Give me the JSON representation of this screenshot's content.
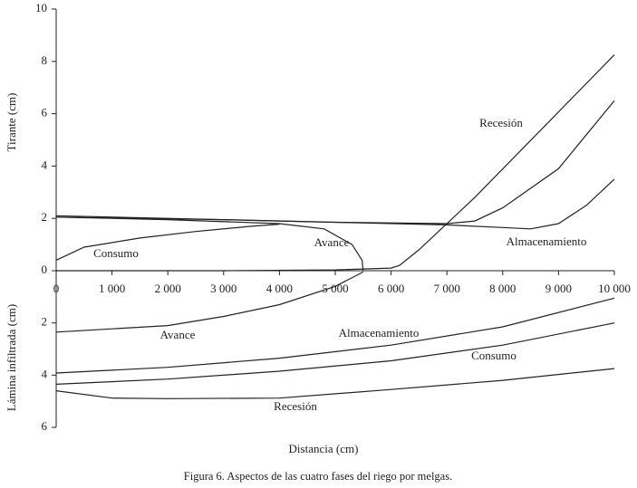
{
  "chart_data": [
    {
      "type": "line",
      "ylabel": "Tirante (cm)",
      "xlim": [
        0,
        10000
      ],
      "ylim": [
        0,
        10
      ],
      "xticks": [
        0,
        {
          "value": 1000,
          "label": "1 000"
        },
        {
          "value": 2000,
          "label": "2 000"
        },
        {
          "value": 3000,
          "label": "3 000"
        },
        {
          "value": 4000,
          "label": "4 000"
        },
        {
          "value": 5000,
          "label": "5 000"
        },
        {
          "value": 6000,
          "label": "6 000"
        },
        {
          "value": 7000,
          "label": "7 000"
        },
        {
          "value": 8000,
          "label": "8 000"
        },
        {
          "value": 9000,
          "label": "9 000"
        },
        {
          "value": 10000,
          "label": "10 000"
        }
      ],
      "yticks": [
        0,
        2,
        4,
        6,
        8,
        10
      ],
      "color": "#222222",
      "series": [
        {
          "name": "Consumo",
          "x": [
            0,
            500,
            1500,
            2500,
            3500,
            4000
          ],
          "values": [
            0.4,
            0.9,
            1.25,
            1.5,
            1.7,
            1.78
          ]
        },
        {
          "name": "Avance",
          "x": [
            0,
            2000,
            4000,
            4800,
            5300,
            5480,
            5500
          ],
          "values": [
            2.05,
            1.95,
            1.8,
            1.6,
            1.0,
            0.4,
            0
          ]
        },
        {
          "name": "Recesión",
          "x": [
            0,
            3000,
            5000,
            6000,
            6150,
            6500,
            7500,
            10000
          ],
          "values": [
            0,
            0,
            0.03,
            0.1,
            0.2,
            0.8,
            2.8,
            8.25
          ]
        },
        {
          "x": [
            0,
            3000,
            5000,
            7000,
            7500,
            8000,
            9000,
            10000
          ],
          "values": [
            2.05,
            1.95,
            1.85,
            1.8,
            1.9,
            2.4,
            3.9,
            6.5
          ]
        },
        {
          "name": "Almacenamiento",
          "x": [
            0,
            4000,
            7000,
            8000,
            8500,
            9000,
            9500,
            10000
          ],
          "values": [
            2.1,
            1.9,
            1.75,
            1.65,
            1.6,
            1.8,
            2.5,
            3.5
          ]
        }
      ]
    },
    {
      "type": "line",
      "ylabel": "Lámina infiltrada (cm)",
      "xlabel": "Distancia (cm)",
      "xlim": [
        0,
        10000
      ],
      "ylim": [
        0,
        6
      ],
      "y_inverted": true,
      "yticks": [
        2,
        4,
        6
      ],
      "color": "#222222",
      "series": [
        {
          "name": "Avance",
          "x": [
            0,
            2000,
            3000,
            4000,
            5000,
            5500
          ],
          "values": [
            2.35,
            2.1,
            1.75,
            1.3,
            0.6,
            0.05
          ]
        },
        {
          "name": "Almacenamiento",
          "x": [
            0,
            2000,
            4000,
            6000,
            8000,
            10000
          ],
          "values": [
            3.92,
            3.7,
            3.35,
            2.85,
            2.15,
            1.05
          ]
        },
        {
          "name": "Consumo",
          "x": [
            0,
            2000,
            4000,
            6000,
            8000,
            10000
          ],
          "values": [
            4.35,
            4.15,
            3.85,
            3.45,
            2.85,
            2.0
          ]
        },
        {
          "name": "Recesión",
          "x": [
            0,
            1000,
            2000,
            4000,
            6000,
            8000,
            10000
          ],
          "values": [
            4.6,
            4.88,
            4.9,
            4.88,
            4.55,
            4.2,
            3.75
          ]
        }
      ]
    }
  ],
  "caption": "Figura 6. Aspectos de las cuatro fases del riego por melgas."
}
